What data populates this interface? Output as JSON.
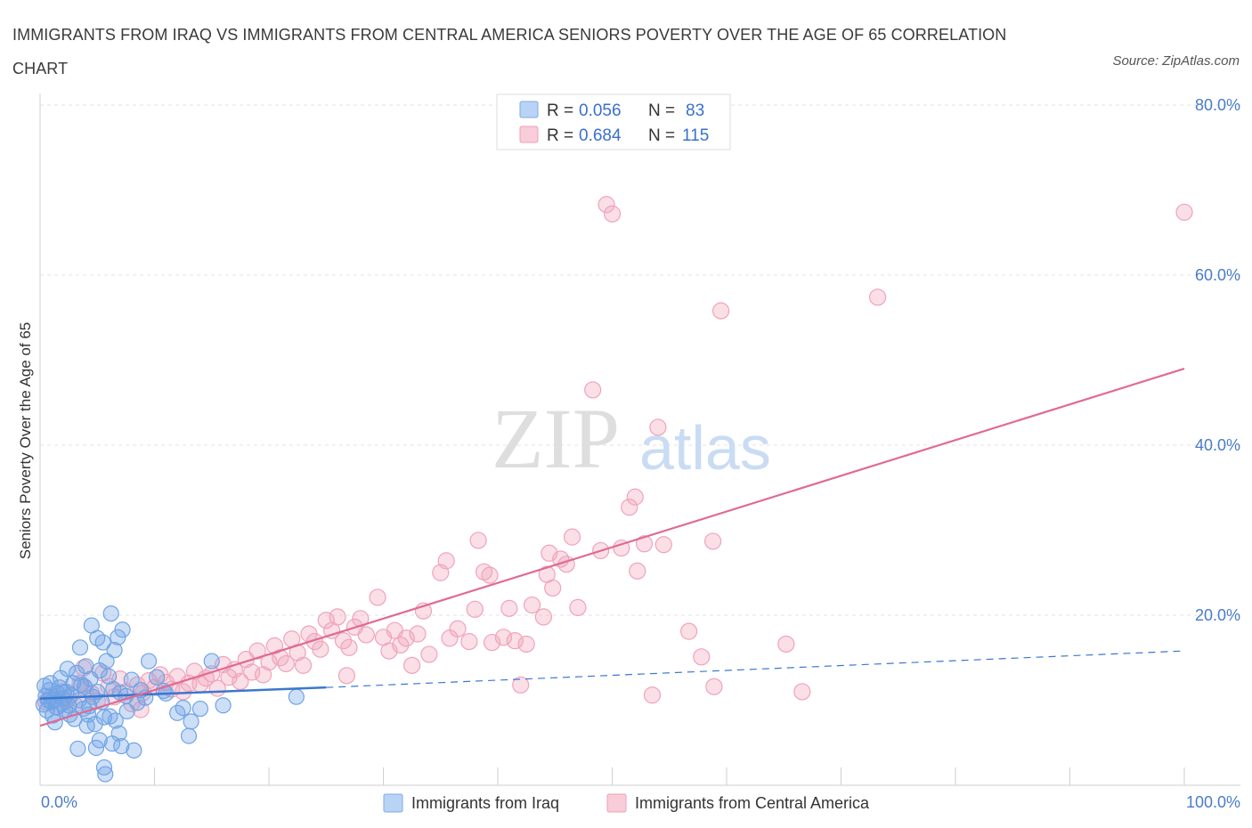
{
  "title": "IMMIGRANTS FROM IRAQ VS IMMIGRANTS FROM CENTRAL AMERICA SENIORS POVERTY OVER THE AGE OF 65 CORRELATION CHART",
  "source": "Source: ZipAtlas.com",
  "watermark": {
    "zip": "ZIP",
    "atlas": "atlas"
  },
  "colors": {
    "iraq": "#6fa3e6",
    "iraq_line": "#3a78cf",
    "ca": "#f0a3ba",
    "ca_line": "#e06a92",
    "tick": "#4a7cc9"
  },
  "legend": {
    "rows": [
      {
        "r_label": "R = ",
        "r_value": "0.056",
        "n_label": "N = ",
        "n_value": "83"
      },
      {
        "r_label": "R = ",
        "r_value": "0.684",
        "n_label": "N = ",
        "n_value": "115"
      }
    ]
  },
  "chart_data": {
    "type": "scatter",
    "xlabel": "",
    "ylabel": "Seniors Poverty Over the Age of 65",
    "xlim": [
      0,
      100
    ],
    "ylim": [
      0,
      80
    ],
    "x_tick_labels": [
      "0.0%",
      "100.0%"
    ],
    "y_ticks": [
      {
        "value": 20,
        "label": "20.0%"
      },
      {
        "value": 40,
        "label": "40.0%"
      },
      {
        "value": 60,
        "label": "60.0%"
      },
      {
        "value": 80,
        "label": "80.0%"
      }
    ],
    "series": [
      {
        "name": "Immigrants from Iraq",
        "trend": {
          "x0": 0,
          "y0": 10.2,
          "x1": 25,
          "y1": 11.5,
          "dash_x1": 100,
          "dash_y1": 15.8
        },
        "points": [
          [
            0.3,
            9.5
          ],
          [
            0.5,
            10.5
          ],
          [
            0.6,
            8.8
          ],
          [
            0.8,
            11.2
          ],
          [
            1.0,
            9.8
          ],
          [
            1.2,
            10.1
          ],
          [
            1.4,
            9.2
          ],
          [
            1.5,
            10.8
          ],
          [
            1.7,
            11.5
          ],
          [
            1.9,
            9.6
          ],
          [
            2.0,
            10.2
          ],
          [
            2.2,
            8.9
          ],
          [
            2.3,
            11.0
          ],
          [
            2.5,
            9.4
          ],
          [
            2.7,
            10.6
          ],
          [
            2.9,
            12.0
          ],
          [
            3.0,
            7.8
          ],
          [
            3.2,
            13.2
          ],
          [
            3.4,
            10.0
          ],
          [
            3.6,
            11.8
          ],
          [
            3.8,
            9.0
          ],
          [
            4.0,
            14.0
          ],
          [
            4.2,
            8.3
          ],
          [
            4.4,
            12.5
          ],
          [
            4.6,
            10.4
          ],
          [
            4.8,
            7.2
          ],
          [
            5.0,
            11.0
          ],
          [
            5.2,
            13.5
          ],
          [
            5.4,
            9.8
          ],
          [
            5.6,
            8.0
          ],
          [
            3.5,
            16.2
          ],
          [
            4.5,
            18.8
          ],
          [
            5.0,
            17.3
          ],
          [
            5.5,
            16.8
          ],
          [
            6.2,
            20.2
          ],
          [
            6.8,
            17.4
          ],
          [
            7.2,
            18.3
          ],
          [
            6.5,
            15.9
          ],
          [
            5.8,
            14.6
          ],
          [
            6.0,
            12.8
          ],
          [
            6.4,
            11.3
          ],
          [
            7.0,
            10.9
          ],
          [
            7.5,
            10.5
          ],
          [
            8.0,
            12.4
          ],
          [
            8.5,
            9.7
          ],
          [
            9.5,
            14.6
          ],
          [
            10.2,
            12.7
          ],
          [
            10.8,
            11.1
          ],
          [
            12.0,
            8.5
          ],
          [
            12.5,
            9.1
          ],
          [
            13.0,
            5.8
          ],
          [
            13.2,
            7.5
          ],
          [
            14.0,
            9.0
          ],
          [
            15.0,
            14.6
          ],
          [
            16.0,
            9.4
          ],
          [
            6.1,
            8.1
          ],
          [
            6.6,
            7.6
          ],
          [
            5.2,
            5.3
          ],
          [
            6.3,
            4.9
          ],
          [
            7.1,
            4.6
          ],
          [
            8.2,
            4.1
          ],
          [
            4.9,
            4.4
          ],
          [
            3.3,
            4.3
          ],
          [
            5.6,
            2.1
          ],
          [
            5.7,
            1.3
          ],
          [
            4.1,
            7.0
          ],
          [
            6.9,
            6.1
          ],
          [
            2.6,
            8.3
          ],
          [
            1.3,
            7.4
          ],
          [
            0.9,
            12.0
          ],
          [
            1.8,
            12.6
          ],
          [
            2.4,
            13.7
          ],
          [
            3.9,
            11.6
          ],
          [
            4.3,
            9.3
          ],
          [
            7.6,
            8.7
          ],
          [
            8.8,
            11.2
          ],
          [
            9.2,
            10.3
          ],
          [
            11.0,
            10.8
          ],
          [
            0.4,
            11.7
          ],
          [
            1.1,
            8.2
          ],
          [
            22.4,
            10.4
          ],
          [
            0.7,
            10.0
          ],
          [
            2.1,
            10.9
          ]
        ]
      },
      {
        "name": "Immigrants from Central America",
        "trend": {
          "x0": 0,
          "y0": 7.0,
          "x1": 100,
          "y1": 49.0
        },
        "points": [
          [
            0.5,
            9.8
          ],
          [
            1.0,
            10.5
          ],
          [
            1.5,
            9.2
          ],
          [
            2.0,
            11.0
          ],
          [
            2.5,
            10.2
          ],
          [
            3.0,
            9.5
          ],
          [
            3.5,
            12.0
          ],
          [
            4.0,
            11.3
          ],
          [
            4.5,
            10.8
          ],
          [
            5.0,
            9.9
          ],
          [
            5.5,
            13.2
          ],
          [
            6.0,
            11.6
          ],
          [
            6.5,
            10.4
          ],
          [
            7.0,
            12.5
          ],
          [
            7.5,
            11.0
          ],
          [
            8.0,
            9.6
          ],
          [
            8.5,
            11.8
          ],
          [
            9.0,
            10.9
          ],
          [
            9.5,
            12.3
          ],
          [
            10.0,
            11.5
          ],
          [
            10.5,
            13.0
          ],
          [
            11.0,
            12.1
          ],
          [
            11.5,
            11.3
          ],
          [
            12.0,
            12.8
          ],
          [
            12.5,
            11.0
          ],
          [
            13.0,
            12.0
          ],
          [
            13.5,
            13.4
          ],
          [
            14.0,
            11.9
          ],
          [
            14.5,
            12.6
          ],
          [
            15.0,
            13.1
          ],
          [
            15.5,
            11.4
          ],
          [
            16.0,
            14.2
          ],
          [
            16.5,
            12.7
          ],
          [
            17.0,
            13.6
          ],
          [
            17.5,
            12.2
          ],
          [
            18.0,
            14.8
          ],
          [
            18.5,
            13.3
          ],
          [
            19.0,
            15.8
          ],
          [
            19.5,
            13.0
          ],
          [
            20.0,
            14.5
          ],
          [
            20.5,
            16.4
          ],
          [
            21.0,
            15.0
          ],
          [
            21.5,
            14.3
          ],
          [
            22.0,
            17.2
          ],
          [
            22.5,
            15.6
          ],
          [
            23.0,
            14.1
          ],
          [
            23.5,
            17.8
          ],
          [
            24.0,
            16.9
          ],
          [
            24.5,
            16.0
          ],
          [
            25.0,
            19.4
          ],
          [
            25.5,
            18.2
          ],
          [
            26.0,
            19.8
          ],
          [
            26.5,
            17.0
          ],
          [
            27.0,
            16.2
          ],
          [
            27.5,
            18.6
          ],
          [
            28.0,
            19.6
          ],
          [
            28.5,
            17.7
          ],
          [
            29.5,
            22.1
          ],
          [
            30.0,
            17.4
          ],
          [
            30.5,
            15.8
          ],
          [
            31.0,
            18.2
          ],
          [
            31.5,
            16.5
          ],
          [
            32.0,
            17.3
          ],
          [
            32.5,
            14.1
          ],
          [
            33.0,
            17.8
          ],
          [
            33.5,
            20.5
          ],
          [
            34.0,
            15.4
          ],
          [
            35.0,
            25.0
          ],
          [
            35.5,
            26.4
          ],
          [
            35.8,
            17.3
          ],
          [
            36.5,
            18.4
          ],
          [
            37.5,
            16.9
          ],
          [
            38.0,
            20.7
          ],
          [
            38.3,
            28.8
          ],
          [
            38.8,
            25.1
          ],
          [
            39.3,
            24.7
          ],
          [
            39.5,
            16.8
          ],
          [
            40.5,
            17.4
          ],
          [
            41.0,
            20.8
          ],
          [
            41.5,
            17.0
          ],
          [
            42.0,
            11.8
          ],
          [
            42.5,
            16.6
          ],
          [
            43.0,
            21.2
          ],
          [
            44.0,
            19.8
          ],
          [
            44.3,
            24.8
          ],
          [
            44.8,
            23.2
          ],
          [
            45.5,
            26.6
          ],
          [
            46.0,
            26.0
          ],
          [
            46.5,
            29.2
          ],
          [
            47.0,
            20.9
          ],
          [
            49.0,
            27.6
          ],
          [
            49.5,
            68.3
          ],
          [
            50.0,
            67.2
          ],
          [
            50.8,
            27.9
          ],
          [
            51.5,
            32.7
          ],
          [
            52.0,
            33.9
          ],
          [
            52.2,
            25.2
          ],
          [
            53.5,
            10.6
          ],
          [
            54.0,
            42.1
          ],
          [
            54.5,
            28.3
          ],
          [
            52.8,
            28.4
          ],
          [
            48.3,
            46.5
          ],
          [
            56.7,
            18.1
          ],
          [
            57.8,
            15.1
          ],
          [
            58.8,
            28.7
          ],
          [
            58.9,
            11.6
          ],
          [
            59.5,
            55.8
          ],
          [
            65.2,
            16.6
          ],
          [
            66.6,
            11.0
          ],
          [
            73.2,
            57.4
          ],
          [
            100.0,
            67.4
          ],
          [
            3.8,
            13.8
          ],
          [
            8.8,
            8.9
          ],
          [
            26.8,
            12.9
          ],
          [
            44.5,
            27.3
          ]
        ]
      }
    ]
  },
  "bottom_legend": {
    "iraq": "Immigrants from Iraq",
    "ca": "Immigrants from Central America"
  }
}
